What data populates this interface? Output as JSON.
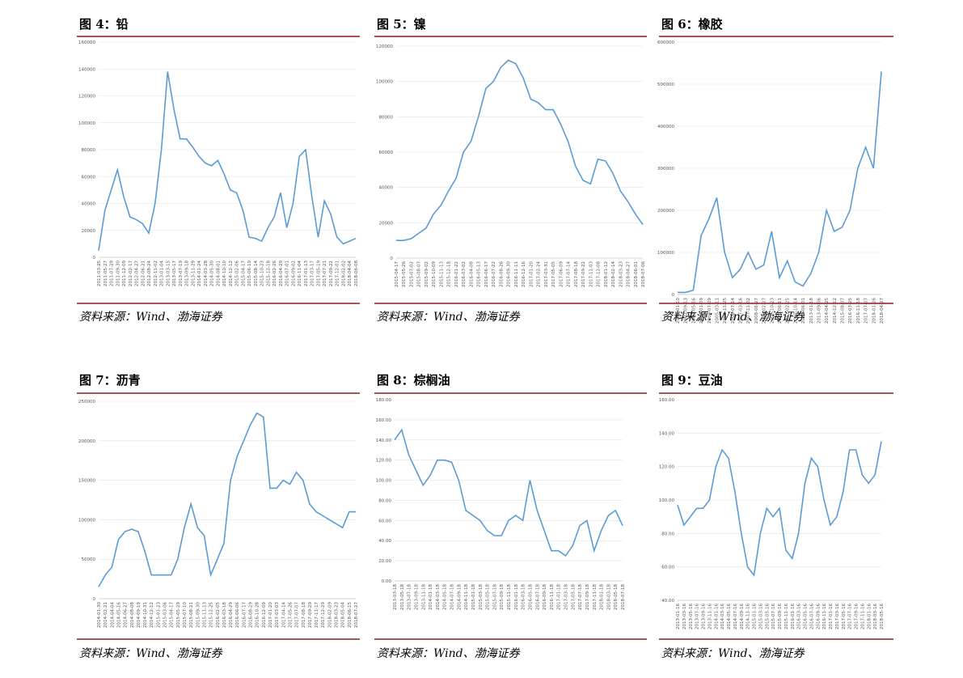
{
  "chart_data": [
    {
      "type": "line",
      "title": "图 4：铅",
      "source": "资料来源：Wind、渤海证券",
      "color": "#5b9bd5",
      "grid": true,
      "ylim": [
        0,
        160000
      ],
      "yticks": [
        0,
        20000,
        40000,
        60000,
        80000,
        100000,
        120000,
        140000,
        160000
      ],
      "categories": [
        "2011-03-25",
        "2011-05-27",
        "2011-07-29",
        "2011-09-30",
        "2011-12-09",
        "2012-02-17",
        "2012-04-27",
        "2012-06-21",
        "2012-08-24",
        "2012-11-02",
        "2013-01-04",
        "2013-03-15",
        "2013-05-17",
        "2013-07-19",
        "2013-09-18",
        "2013-11-29",
        "2014-01-24",
        "2014-03-28",
        "2014-05-30",
        "2014-08-01",
        "2014-10-10",
        "2014-12-12",
        "2015-02-06",
        "2015-04-17",
        "2015-06-19",
        "2015-08-14",
        "2015-10-23",
        "2015-12-18",
        "2016-02-26",
        "2016-04-29",
        "2016-07-01",
        "2016-09-02",
        "2016-11-04",
        "2017-01-13",
        "2017-03-17",
        "2017-05-19",
        "2017-07-21",
        "2017-09-22",
        "2017-12-01",
        "2018-02-02",
        "2018-04-04",
        "2018-06-08"
      ],
      "values": [
        5000,
        35000,
        50000,
        65000,
        45000,
        30000,
        28000,
        25000,
        18000,
        40000,
        80000,
        138000,
        110000,
        88000,
        88000,
        82000,
        75000,
        70000,
        68000,
        72000,
        62000,
        50000,
        48000,
        35000,
        15000,
        14000,
        12000,
        22000,
        30000,
        48000,
        22000,
        40000,
        75000,
        80000,
        45000,
        15000,
        42000,
        32000,
        15000,
        10000,
        12000,
        14000
      ]
    },
    {
      "type": "line",
      "title": "图 5：镍",
      "source": "资料来源：Wind、渤海证券",
      "color": "#5b9bd5",
      "grid": true,
      "ylim": [
        0,
        120000
      ],
      "yticks": [
        0,
        20000,
        40000,
        60000,
        80000,
        100000,
        120000
      ],
      "categories": [
        "2015-04-17",
        "2015-05-26",
        "2015-07-02",
        "2015-08-07",
        "2015-09-02",
        "2015-10-09",
        "2015-11-13",
        "2015-12-18",
        "2016-01-22",
        "2016-03-02",
        "2016-04-08",
        "2016-05-13",
        "2016-06-17",
        "2016-07-22",
        "2016-08-26",
        "2016-09-30",
        "2016-11-11",
        "2016-12-16",
        "2017-01-20",
        "2017-02-24",
        "2017-03-31",
        "2017-05-05",
        "2017-06-09",
        "2017-07-14",
        "2017-08-18",
        "2017-09-22",
        "2017-11-03",
        "2017-12-08",
        "2018-01-12",
        "2018-02-14",
        "2018-03-23",
        "2018-04-27",
        "2018-06-01",
        "2018-07-06"
      ],
      "values": [
        10000,
        10000,
        11000,
        14000,
        17000,
        25000,
        30000,
        38000,
        45000,
        60000,
        66000,
        80000,
        96000,
        100000,
        108000,
        112000,
        110000,
        102000,
        90000,
        88000,
        84000,
        84000,
        76000,
        66000,
        52000,
        44000,
        42000,
        56000,
        55000,
        48000,
        38000,
        32000,
        25000,
        19000
      ]
    },
    {
      "type": "line",
      "title": "图 6：橡胶",
      "source": "资料来源：Wind、渤海证券",
      "color": "#5b9bd5",
      "grid": true,
      "ylim": [
        0,
        600000
      ],
      "yticks": [
        0,
        100000,
        200000,
        300000,
        400000,
        500000,
        600000
      ],
      "categories": [
        "2002-01-10",
        "2002-09-13",
        "2003-05-16",
        "2004-01-09",
        "2004-07-09",
        "2005-03-11",
        "2005-11-25",
        "2006-07-14",
        "2007-03-16",
        "2007-11-02",
        "2008-06-27",
        "2009-02-27",
        "2009-10-23",
        "2010-06-11",
        "2011-02-25",
        "2011-10-14",
        "2012-06-01",
        "2013-01-18",
        "2013-09-06",
        "2014-04-25",
        "2014-12-12",
        "2015-08-07",
        "2016-03-25",
        "2016-11-18",
        "2017-07-07",
        "2018-01-26",
        "2018-04-27"
      ],
      "values": [
        5000,
        5000,
        10000,
        140000,
        180000,
        230000,
        100000,
        40000,
        60000,
        100000,
        60000,
        70000,
        150000,
        40000,
        80000,
        30000,
        20000,
        50000,
        100000,
        200000,
        150000,
        160000,
        200000,
        300000,
        350000,
        300000,
        530000
      ]
    },
    {
      "type": "line",
      "title": "图 7：沥青",
      "source": "资料来源：Wind、渤海证券",
      "color": "#5b9bd5",
      "grid": true,
      "ylim": [
        0,
        250000
      ],
      "yticks": [
        0,
        50000,
        100000,
        150000,
        200000,
        250000
      ],
      "categories": [
        "2014-01-30",
        "2014-02-21",
        "2014-04-04",
        "2014-05-16",
        "2014-06-27",
        "2014-08-08",
        "2014-09-19",
        "2014-10-31",
        "2014-12-12",
        "2015-01-23",
        "2015-03-06",
        "2015-04-17",
        "2015-05-29",
        "2015-07-10",
        "2015-08-21",
        "2015-09-30",
        "2015-11-13",
        "2015-12-25",
        "2016-02-05",
        "2016-03-18",
        "2016-04-29",
        "2016-06-06",
        "2016-07-17",
        "2016-08-29",
        "2016-10-28",
        "2016-12-09",
        "2017-01-20",
        "2017-03-03",
        "2017-04-14",
        "2017-05-26",
        "2017-07-07",
        "2017-08-18",
        "2017-09-29",
        "2017-11-17",
        "2017-12-29",
        "2018-02-09",
        "2018-03-23",
        "2018-05-04",
        "2018-06-15",
        "2018-07-27"
      ],
      "values": [
        15000,
        30000,
        40000,
        75000,
        85000,
        88000,
        85000,
        60000,
        30000,
        30000,
        30000,
        30000,
        50000,
        90000,
        120000,
        90000,
        80000,
        30000,
        50000,
        70000,
        150000,
        180000,
        200000,
        220000,
        235000,
        230000,
        140000,
        140000,
        150000,
        145000,
        160000,
        150000,
        120000,
        110000,
        105000,
        100000,
        95000,
        90000,
        110000,
        110000
      ]
    },
    {
      "type": "line",
      "title": "图 8：棕榈油",
      "source": "资料来源：Wind、渤海证券",
      "color": "#5b9bd5",
      "grid": true,
      "ylim": [
        0,
        180
      ],
      "yticks": [
        {
          "value": 0,
          "label": "0.00"
        },
        {
          "value": 20,
          "label": "20.00"
        },
        {
          "value": 40,
          "label": "40.00"
        },
        {
          "value": 60,
          "label": "60.00"
        },
        {
          "value": 80,
          "label": "80.00"
        },
        {
          "value": 100,
          "label": "100.00"
        },
        {
          "value": 120,
          "label": "120.00"
        },
        {
          "value": 140,
          "label": "140.00"
        },
        {
          "value": 160,
          "label": "160.00"
        },
        {
          "value": 180,
          "label": "180.00"
        }
      ],
      "categories": [
        "2013-03-18",
        "2013-05-18",
        "2013-07-18",
        "2013-09-18",
        "2013-11-18",
        "2014-01-18",
        "2014-03-18",
        "2014-05-18",
        "2014-07-18",
        "2014-09-18",
        "2014-11-18",
        "2015-01-18",
        "2015-03-18",
        "2015-05-18",
        "2015-07-18",
        "2015-09-18",
        "2015-11-18",
        "2016-01-18",
        "2016-03-18",
        "2016-05-18",
        "2016-07-18",
        "2016-09-18",
        "2016-11-18",
        "2017-01-18",
        "2017-03-18",
        "2017-05-18",
        "2017-07-18",
        "2017-09-18",
        "2017-11-18",
        "2018-01-18",
        "2018-03-18",
        "2018-05-18",
        "2018-07-18"
      ],
      "values": [
        140,
        150,
        125,
        110,
        95,
        105,
        120,
        120,
        118,
        100,
        70,
        65,
        60,
        50,
        45,
        45,
        60,
        65,
        60,
        100,
        70,
        50,
        30,
        30,
        25,
        35,
        55,
        60,
        30,
        50,
        65,
        70,
        55
      ]
    },
    {
      "type": "line",
      "title": "图 9：豆油",
      "source": "资料来源：Wind、渤海证券",
      "color": "#5b9bd5",
      "grid": true,
      "ylim": [
        40,
        160
      ],
      "yticks": [
        {
          "value": 40,
          "label": "40.00"
        },
        {
          "value": 60,
          "label": "60.00"
        },
        {
          "value": 80,
          "label": "80.00"
        },
        {
          "value": 100,
          "label": "100.00"
        },
        {
          "value": 120,
          "label": "120.00"
        },
        {
          "value": 140,
          "label": "140.00"
        },
        {
          "value": 160,
          "label": "160.00"
        }
      ],
      "categories": [
        "2013-01-16",
        "2013-03-16",
        "2013-05-16",
        "2013-07-16",
        "2013-09-16",
        "2013-11-16",
        "2014-01-16",
        "2014-03-16",
        "2014-05-16",
        "2014-07-16",
        "2014-09-16",
        "2014-11-16",
        "2015-01-16",
        "2015-03-16",
        "2015-05-16",
        "2015-07-16",
        "2015-09-16",
        "2015-11-16",
        "2016-01-16",
        "2016-03-16",
        "2016-05-16",
        "2016-07-16",
        "2016-09-16",
        "2016-11-16",
        "2017-01-16",
        "2017-03-16",
        "2017-05-16",
        "2017-07-16",
        "2017-09-16",
        "2017-11-16",
        "2018-01-16",
        "2018-03-16",
        "2018-05-16"
      ],
      "values": [
        97,
        85,
        90,
        95,
        95,
        100,
        120,
        130,
        125,
        105,
        80,
        60,
        55,
        80,
        95,
        90,
        95,
        70,
        65,
        80,
        110,
        125,
        120,
        100,
        85,
        90,
        105,
        130,
        130,
        115,
        110,
        115,
        135
      ]
    }
  ]
}
